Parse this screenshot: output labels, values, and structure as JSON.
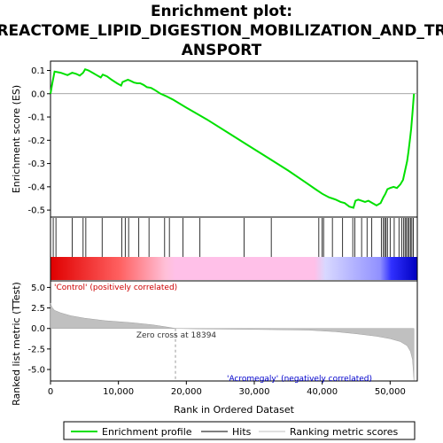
{
  "chart_data": [
    {
      "type": "line",
      "title_lines": [
        "Enrichment plot:",
        "REACTOME_LIPID_DIGESTION_MOBILIZATION_AND_TR",
        "ANSPORT"
      ],
      "ylabel": "Enrichment score (ES)",
      "ylim": [
        -0.53,
        0.14
      ],
      "yticks": [
        0.1,
        0.0,
        -0.1,
        -0.2,
        -0.3,
        -0.4,
        -0.5
      ],
      "ytick_labels": [
        "0.1",
        "0.0",
        "-0.1",
        "-0.2",
        "-0.3",
        "-0.4",
        "-0.5"
      ],
      "xlim": [
        0,
        54000
      ],
      "series": [
        {
          "name": "Enrichment profile",
          "color": "#00e000",
          "x": [
            0,
            300,
            600,
            1500,
            2500,
            3200,
            3800,
            4300,
            4800,
            5100,
            5600,
            6200,
            6800,
            7400,
            7700,
            8300,
            9000,
            9800,
            10400,
            10600,
            11000,
            11400,
            11800,
            12300,
            12800,
            13200,
            13700,
            14200,
            14800,
            15400,
            16200,
            17000,
            18000,
            20000,
            23000,
            26000,
            29000,
            32000,
            35000,
            37500,
            39000,
            40000,
            41000,
            41500,
            42000,
            42700,
            43300,
            44000,
            44600,
            44900,
            45300,
            45800,
            46300,
            46800,
            47400,
            48000,
            48600,
            49000,
            49300,
            49600,
            50000,
            50500,
            51000,
            51500,
            51900,
            52200,
            52500,
            52700,
            52900,
            53100,
            53300,
            53500
          ],
          "y": [
            0.0,
            0.05,
            0.095,
            0.09,
            0.08,
            0.09,
            0.085,
            0.078,
            0.09,
            0.105,
            0.1,
            0.09,
            0.08,
            0.07,
            0.082,
            0.075,
            0.06,
            0.045,
            0.035,
            0.05,
            0.055,
            0.06,
            0.055,
            0.048,
            0.045,
            0.045,
            0.038,
            0.028,
            0.025,
            0.015,
            0.0,
            -0.01,
            -0.025,
            -0.06,
            -0.11,
            -0.165,
            -0.22,
            -0.275,
            -0.33,
            -0.38,
            -0.41,
            -0.43,
            -0.445,
            -0.45,
            -0.455,
            -0.465,
            -0.47,
            -0.485,
            -0.49,
            -0.46,
            -0.455,
            -0.46,
            -0.465,
            -0.46,
            -0.47,
            -0.48,
            -0.47,
            -0.445,
            -0.43,
            -0.41,
            -0.405,
            -0.4,
            -0.405,
            -0.39,
            -0.37,
            -0.33,
            -0.29,
            -0.25,
            -0.2,
            -0.15,
            -0.08,
            0.0
          ]
        }
      ]
    },
    {
      "type": "hits",
      "hits": [
        400,
        800,
        3200,
        4800,
        5200,
        7600,
        10500,
        11000,
        11500,
        13000,
        14500,
        16800,
        17500,
        19500,
        22000,
        28500,
        32500,
        39500,
        40000,
        40200,
        41500,
        43000,
        44500,
        44800,
        45800,
        46600,
        47300,
        48700,
        49000,
        49200,
        49400,
        49600,
        50000,
        50600,
        51300,
        51700,
        52000,
        52200,
        52400,
        52600,
        52800,
        53000,
        53200,
        53400
      ],
      "hit_color": "#000000"
    },
    {
      "type": "area",
      "ylabel": "Ranked list metric (TTest)",
      "xlabel": "Rank in Ordered Dataset",
      "ylim": [
        -6.4,
        5.8
      ],
      "yticks": [
        5.0,
        2.5,
        0.0,
        -2.5,
        -5.0
      ],
      "ytick_labels": [
        "5.0",
        "2.5",
        "0.0",
        "-2.5",
        "-5.0"
      ],
      "xlim": [
        0,
        54000
      ],
      "xticks": [
        0,
        10000,
        20000,
        30000,
        40000,
        50000
      ],
      "xtick_labels": [
        "0",
        "10,000",
        "20,000",
        "30,000",
        "40,000",
        "50,000"
      ],
      "series": [
        {
          "name": "Ranking metric scores",
          "color": "#c0c0c0",
          "x": [
            0,
            200,
            600,
            1500,
            3000,
            5000,
            8000,
            12000,
            15000,
            17000,
            18394,
            22000,
            30000,
            38000,
            42000,
            45000,
            48000,
            50000,
            51500,
            52500,
            53000,
            53300,
            53500
          ],
          "y": [
            3.1,
            2.6,
            2.2,
            1.9,
            1.55,
            1.25,
            0.95,
            0.7,
            0.45,
            0.2,
            0.0,
            -0.05,
            -0.12,
            -0.2,
            -0.4,
            -0.65,
            -0.95,
            -1.25,
            -1.6,
            -2.1,
            -2.8,
            -3.8,
            -6.3
          ]
        }
      ],
      "annotations": {
        "positive_label": "'Control' (positively correlated)",
        "negative_label": "'Acromegaly' (negatively correlated)",
        "zero_cross_label": "Zero cross at 18394",
        "zero_cross_x": 18394,
        "positive_color": "#cc0000",
        "negative_color": "#0000cc"
      }
    }
  ],
  "legend": {
    "items": [
      {
        "label": "Enrichment profile",
        "color": "#00e000"
      },
      {
        "label": "Hits",
        "color": "#000000"
      },
      {
        "label": "Ranking metric scores",
        "color": "#c0c0c0"
      }
    ]
  }
}
